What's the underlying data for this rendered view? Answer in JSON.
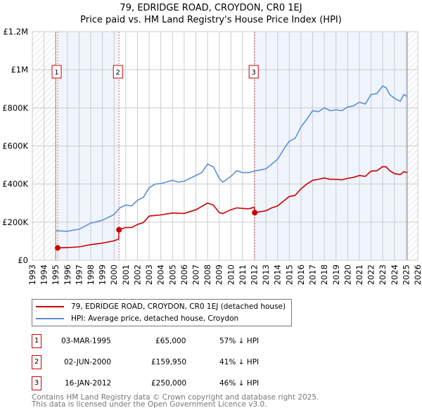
{
  "title_line1": "79, EDRIDGE ROAD, CROYDON, CR0 1EJ",
  "title_line2": "Price paid vs. HM Land Registry's House Price Index (HPI)",
  "chart_data": {
    "type": "line",
    "title": "79, EDRIDGE ROAD, CROYDON, CR0 1EJ — Price paid vs. HM Land Registry's House Price Index (HPI)",
    "xlim": [
      1993,
      2026
    ],
    "ylim": [
      0,
      1200000
    ],
    "x_ticks": [
      "1993",
      "1994",
      "1995",
      "1996",
      "1997",
      "1998",
      "1999",
      "2000",
      "2001",
      "2002",
      "2003",
      "2004",
      "2005",
      "2006",
      "2007",
      "2008",
      "2009",
      "2010",
      "2011",
      "2012",
      "2013",
      "2014",
      "2015",
      "2016",
      "2017",
      "2018",
      "2019",
      "2020",
      "2021",
      "2022",
      "2023",
      "2024",
      "2025",
      "2026"
    ],
    "y_ticks": [
      {
        "v": 0,
        "label": "£0"
      },
      {
        "v": 200000,
        "label": "£200K"
      },
      {
        "v": 400000,
        "label": "£400K"
      },
      {
        "v": 600000,
        "label": "£600K"
      },
      {
        "v": 800000,
        "label": "£800K"
      },
      {
        "v": 1000000,
        "label": "£1M"
      },
      {
        "v": 1200000,
        "label": "£1.2M"
      }
    ],
    "grid": true,
    "series": [
      {
        "name": "79, EDRIDGE ROAD, CROYDON, CR0 1EJ (detached house)",
        "color": "#cc0000",
        "x": [
          1995.17,
          1996,
          1997,
          1998,
          1999,
          2000,
          2000.4,
          2000.42,
          2001,
          2001.5,
          2002,
          2002.5,
          2003,
          2004,
          2005,
          2006,
          2007,
          2008,
          2008.5,
          2009,
          2009.3,
          2010,
          2010.5,
          2011,
          2011.5,
          2012.0,
          2012.04,
          2013,
          2013.5,
          2014,
          2014.5,
          2015,
          2015.5,
          2016,
          2016.5,
          2017,
          2017.5,
          2018,
          2018.5,
          2019,
          2019.5,
          2020,
          2020.5,
          2021,
          2021.5,
          2022,
          2022.5,
          2023,
          2023.3,
          2023.6,
          2024,
          2024.5,
          2024.8,
          2025.1
        ],
        "y": [
          65000,
          67000,
          70000,
          82000,
          90000,
          102000,
          112000,
          159950,
          172000,
          172000,
          188000,
          198000,
          232000,
          238000,
          248000,
          246000,
          265000,
          300000,
          290000,
          250000,
          245000,
          265000,
          275000,
          272000,
          270000,
          278000,
          250000,
          260000,
          275000,
          285000,
          310000,
          335000,
          340000,
          375000,
          400000,
          420000,
          425000,
          432000,
          425000,
          425000,
          422000,
          430000,
          435000,
          445000,
          440000,
          468000,
          470000,
          492000,
          490000,
          470000,
          455000,
          450000,
          465000,
          460000
        ]
      },
      {
        "name": "HPI: Average price, detached house, Croydon",
        "color": "#5b8fd6",
        "x": [
          1995.0,
          1996,
          1997,
          1998,
          1999,
          2000,
          2000.5,
          2001,
          2001.5,
          2002,
          2002.5,
          2003,
          2003.5,
          2004,
          2005,
          2005.5,
          2006,
          2007,
          2007.5,
          2008,
          2008.5,
          2009,
          2009.3,
          2010,
          2010.5,
          2011,
          2011.5,
          2012,
          2013,
          2013.5,
          2014,
          2014.5,
          2015,
          2015.5,
          2016,
          2016.5,
          2017,
          2017.5,
          2018,
          2018.5,
          2019,
          2019.5,
          2020,
          2020.5,
          2021,
          2021.5,
          2022,
          2022.5,
          2023,
          2023.3,
          2023.6,
          2024,
          2024.5,
          2024.8,
          2025.1
        ],
        "y": [
          155000,
          152000,
          163000,
          195000,
          210000,
          240000,
          275000,
          290000,
          285000,
          315000,
          330000,
          380000,
          400000,
          402000,
          420000,
          410000,
          415000,
          445000,
          460000,
          505000,
          490000,
          430000,
          410000,
          440000,
          470000,
          460000,
          460000,
          468000,
          480000,
          505000,
          530000,
          580000,
          625000,
          640000,
          700000,
          740000,
          785000,
          780000,
          800000,
          785000,
          790000,
          785000,
          805000,
          810000,
          830000,
          820000,
          870000,
          875000,
          915000,
          905000,
          870000,
          850000,
          835000,
          870000,
          860000
        ]
      }
    ],
    "sales": [
      {
        "n": "1",
        "x": 1995.17,
        "y": 65000
      },
      {
        "n": "2",
        "x": 2000.42,
        "y": 159950
      },
      {
        "n": "3",
        "x": 2012.04,
        "y": 250000
      }
    ],
    "shaded": [
      [
        1995.17,
        2000.42
      ],
      [
        2012.04,
        2025.1
      ]
    ],
    "hatched": [
      [
        1993,
        1995.0
      ],
      [
        2025.1,
        2026
      ]
    ],
    "legend_placement": "below"
  },
  "legend": [
    "79, EDRIDGE ROAD, CROYDON, CR0 1EJ (detached house)",
    "HPI: Average price, detached house, Croydon"
  ],
  "transactions": [
    {
      "n": "1",
      "date": "03-MAR-1995",
      "price": "£65,000",
      "hpi": "57% ↓ HPI"
    },
    {
      "n": "2",
      "date": "02-JUN-2000",
      "price": "£159,950",
      "hpi": "41% ↓ HPI"
    },
    {
      "n": "3",
      "date": "16-JAN-2012",
      "price": "£250,000",
      "hpi": "46% ↓ HPI"
    }
  ],
  "footer": [
    "Contains HM Land Registry data © Crown copyright and database right 2025.",
    "This data is licensed under the Open Government Licence v3.0."
  ]
}
